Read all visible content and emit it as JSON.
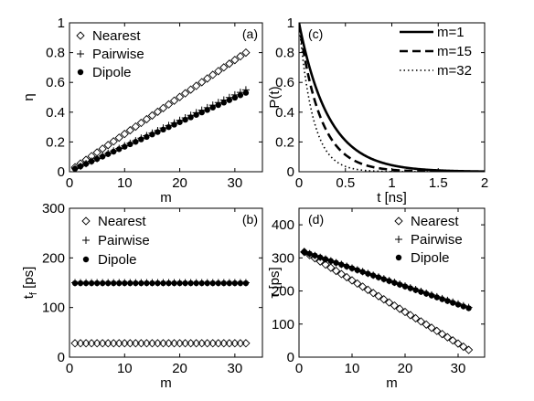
{
  "chart_data": [
    {
      "id": "a",
      "type": "scatter",
      "panel_label": "(a)",
      "xlabel": "m",
      "ylabel": "η",
      "xlim": [
        0,
        35
      ],
      "ylim": [
        0,
        1
      ],
      "xticks": [
        0,
        10,
        20,
        30
      ],
      "yticks": [
        0,
        0.2,
        0.4,
        0.6,
        0.8,
        1
      ],
      "ytick_labels": [
        "0",
        "0.2",
        "0.4",
        "0.6",
        "0.8",
        "1"
      ],
      "legend_position": "top-left",
      "series": [
        {
          "name": "Nearest",
          "marker": "diamond",
          "x_start": 1,
          "x_end": 32,
          "y_start": 0.03,
          "y_end": 0.8
        },
        {
          "name": "Pairwise",
          "marker": "plus",
          "x_start": 1,
          "x_end": 32,
          "y_start": 0.02,
          "y_end": 0.55
        },
        {
          "name": "Dipole",
          "marker": "dot",
          "x_start": 1,
          "x_end": 32,
          "y_start": 0.02,
          "y_end": 0.53
        }
      ]
    },
    {
      "id": "c",
      "type": "line",
      "panel_label": "(c)",
      "xlabel": "t [ns]",
      "ylabel": "P(t)",
      "xlim": [
        0,
        2
      ],
      "ylim": [
        0,
        1
      ],
      "xticks": [
        0,
        0.5,
        1,
        1.5,
        2
      ],
      "xtick_labels": [
        "0",
        "0.5",
        "1",
        "1.5",
        "2"
      ],
      "yticks": [
        0,
        0.2,
        0.4,
        0.6,
        0.8,
        1
      ],
      "ytick_labels": [
        "0",
        "0.2",
        "0.4",
        "0.6",
        "0.8",
        "1"
      ],
      "legend_position": "top-right",
      "series": [
        {
          "name": "m=1",
          "style": "solid",
          "tau_ns": 0.32
        },
        {
          "name": "m=15",
          "style": "dashed",
          "tau_ns": 0.23
        },
        {
          "name": "m=32",
          "style": "dotted",
          "tau_ns": 0.15
        }
      ]
    },
    {
      "id": "b",
      "type": "scatter",
      "panel_label": "(b)",
      "xlabel": "m",
      "ylabel": "t_f [ps]",
      "ylabel_main": "t",
      "ylabel_sub": "f",
      "ylabel_unit": " [ps]",
      "xlim": [
        0,
        35
      ],
      "ylim": [
        0,
        300
      ],
      "xticks": [
        0,
        10,
        20,
        30
      ],
      "yticks": [
        0,
        100,
        200,
        300
      ],
      "legend_position": "top-center",
      "series": [
        {
          "name": "Nearest",
          "marker": "diamond",
          "x_start": 1,
          "x_end": 32,
          "y_start": 28,
          "y_end": 28
        },
        {
          "name": "Pairwise",
          "marker": "plus",
          "x_start": 1,
          "x_end": 32,
          "y_start": 150,
          "y_end": 150
        },
        {
          "name": "Dipole",
          "marker": "dot",
          "x_start": 1,
          "x_end": 32,
          "y_start": 149,
          "y_end": 149
        }
      ]
    },
    {
      "id": "d",
      "type": "scatter",
      "panel_label": "(d)",
      "xlabel": "m",
      "ylabel": "τ [ps]",
      "xlim": [
        0,
        35
      ],
      "ylim": [
        0,
        450
      ],
      "xticks": [
        0,
        10,
        20,
        30
      ],
      "yticks": [
        0,
        100,
        200,
        300,
        400
      ],
      "legend_position": "top-right",
      "series": [
        {
          "name": "Nearest",
          "marker": "diamond",
          "x_start": 1,
          "x_end": 32,
          "y_start": 318,
          "y_end": 22
        },
        {
          "name": "Pairwise",
          "marker": "plus",
          "x_start": 1,
          "x_end": 32,
          "y_start": 318,
          "y_end": 150
        },
        {
          "name": "Dipole",
          "marker": "dot",
          "x_start": 1,
          "x_end": 32,
          "y_start": 318,
          "y_end": 148
        }
      ]
    }
  ]
}
